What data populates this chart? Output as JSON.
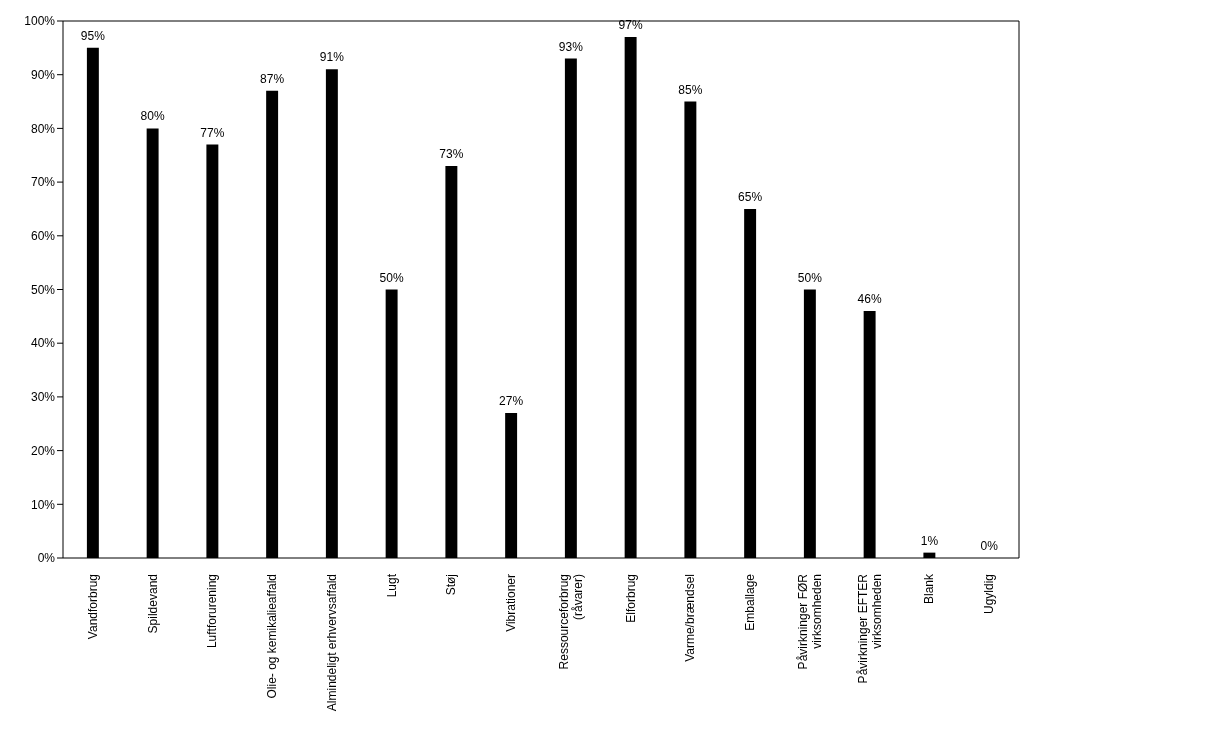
{
  "chart_data": {
    "type": "bar",
    "categories": [
      "Vandforbrug",
      "Spildevand",
      "Luftforurening",
      "Olie- og kemikalieaffald",
      "Almindeligt erhvervsaffald",
      "Lugt",
      "Støj",
      "Vibrationer",
      "Ressourceforbrug\n(råvarer)",
      "Elforbrug",
      "Varme/brændsel",
      "Emballage",
      "Påvirkninger FØR\nvirksomheden",
      "Påvirkninger EFTER\nvirksomheden",
      "Blank",
      "Ugyldig"
    ],
    "values": [
      95,
      80,
      77,
      87,
      91,
      50,
      73,
      27,
      93,
      97,
      85,
      65,
      50,
      46,
      1,
      0
    ],
    "value_labels": [
      "95%",
      "80%",
      "77%",
      "87%",
      "91%",
      "50%",
      "73%",
      "27%",
      "93%",
      "97%",
      "85%",
      "65%",
      "50%",
      "46%",
      "1%",
      "0%"
    ],
    "color": "#000000",
    "ylim": [
      0,
      100
    ],
    "yticks": [
      {
        "value": 0,
        "label": "0%"
      },
      {
        "value": 10,
        "label": "10%"
      },
      {
        "value": 20,
        "label": "20%"
      },
      {
        "value": 30,
        "label": "30%"
      },
      {
        "value": 40,
        "label": "40%"
      },
      {
        "value": 50,
        "label": "50%"
      },
      {
        "value": 60,
        "label": "60%"
      },
      {
        "value": 70,
        "label": "70%"
      },
      {
        "value": 80,
        "label": "80%"
      },
      {
        "value": 90,
        "label": "90%"
      },
      {
        "value": 100,
        "label": "100%"
      }
    ],
    "grid": false,
    "legend": false
  }
}
